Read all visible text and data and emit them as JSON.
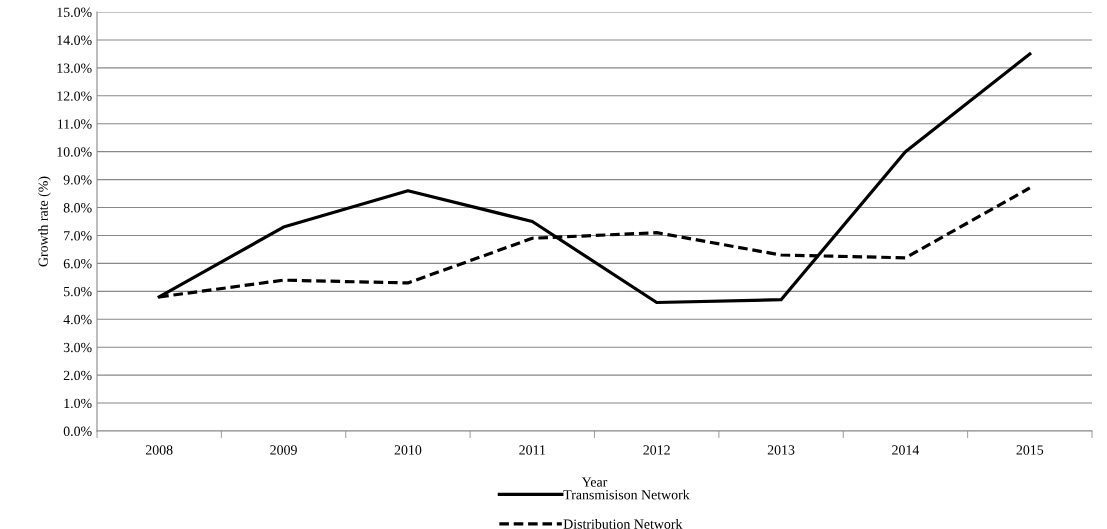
{
  "chart_data": {
    "type": "line",
    "xlabel": "Year",
    "ylabel": "Growth rate (%)",
    "categories": [
      "2008",
      "2009",
      "2010",
      "2011",
      "2012",
      "2013",
      "2014",
      "2015"
    ],
    "series": [
      {
        "name": "Transmisison Network",
        "color": "#000000",
        "line_style": "solid",
        "values": [
          4.8,
          7.3,
          8.6,
          7.5,
          4.6,
          4.7,
          10.0,
          13.5
        ]
      },
      {
        "name": "Distribution Network",
        "color": "#000000",
        "line_style": "dashed",
        "values": [
          4.8,
          5.4,
          5.3,
          6.9,
          7.1,
          6.3,
          6.2,
          8.7
        ]
      }
    ],
    "ylim": [
      0,
      15
    ],
    "yticks": [
      {
        "value": 0,
        "label": "0.0%"
      },
      {
        "value": 1,
        "label": "1.0%"
      },
      {
        "value": 2,
        "label": "2.0%"
      },
      {
        "value": 3,
        "label": "3.0%"
      },
      {
        "value": 4,
        "label": "4.0%"
      },
      {
        "value": 5,
        "label": "5.0%"
      },
      {
        "value": 6,
        "label": "6.0%"
      },
      {
        "value": 7,
        "label": "7.0%"
      },
      {
        "value": 8,
        "label": "8.0%"
      },
      {
        "value": 9,
        "label": "9.0%"
      },
      {
        "value": 10,
        "label": "10.0%"
      },
      {
        "value": 11,
        "label": "11.0%"
      },
      {
        "value": 12,
        "label": "12.0%"
      },
      {
        "value": 13,
        "label": "13.0%"
      },
      {
        "value": 14,
        "label": "14.0%"
      },
      {
        "value": 15,
        "label": "15.0%"
      }
    ],
    "grid": "y",
    "legend": "bottom",
    "marker": "none"
  }
}
